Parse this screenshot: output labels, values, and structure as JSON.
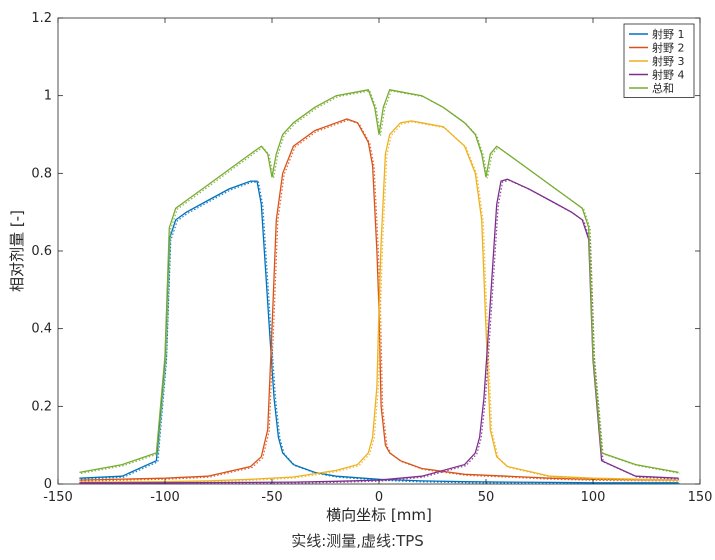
{
  "chart_data": {
    "type": "line",
    "xlabel": "横向坐标 [mm]",
    "ylabel": "相对剂量 [-]",
    "caption": "实线:测量,虚线:TPS",
    "xlim": [
      -150,
      150
    ],
    "ylim": [
      0,
      1.2
    ],
    "xticks": [
      -150,
      -100,
      -50,
      0,
      50,
      100,
      150
    ],
    "yticks": [
      0,
      0.2,
      0.4,
      0.6,
      0.8,
      1,
      1.2
    ],
    "xtick_labels": [
      "-150",
      "-100",
      "-50",
      "0",
      "50",
      "100",
      "150"
    ],
    "ytick_labels": [
      "0",
      "0.2",
      "0.4",
      "0.6",
      "0.8",
      "1",
      "1.2"
    ],
    "grid": false,
    "legend_position": "top-right",
    "line_styles": {
      "measured": "solid",
      "tps": "dotted"
    },
    "series": [
      {
        "name": "射野 1",
        "color": "#0072BD",
        "x": [
          -140,
          -120,
          -104,
          -100,
          -98,
          -95,
          -90,
          -80,
          -70,
          -60,
          -57,
          -55,
          -53,
          -51,
          -49,
          -47,
          -45,
          -40,
          -30,
          -20,
          0,
          20,
          40,
          60,
          80,
          100,
          120,
          140
        ],
        "y": [
          0.015,
          0.02,
          0.06,
          0.32,
          0.63,
          0.68,
          0.7,
          0.73,
          0.76,
          0.78,
          0.78,
          0.72,
          0.55,
          0.38,
          0.22,
          0.12,
          0.08,
          0.05,
          0.03,
          0.02,
          0.012,
          0.008,
          0.006,
          0.005,
          0.004,
          0.003,
          0.003,
          0.003
        ]
      },
      {
        "name": "射野 2",
        "color": "#D95319",
        "x": [
          -140,
          -100,
          -80,
          -60,
          -55,
          -52,
          -50,
          -48,
          -45,
          -40,
          -30,
          -20,
          -15,
          -10,
          -5,
          -3,
          -1,
          0,
          1,
          3,
          5,
          10,
          20,
          40,
          60,
          80,
          100,
          140
        ],
        "y": [
          0.01,
          0.015,
          0.02,
          0.045,
          0.07,
          0.14,
          0.4,
          0.68,
          0.8,
          0.87,
          0.91,
          0.93,
          0.94,
          0.93,
          0.88,
          0.82,
          0.6,
          0.45,
          0.2,
          0.1,
          0.08,
          0.06,
          0.04,
          0.025,
          0.02,
          0.015,
          0.012,
          0.01
        ]
      },
      {
        "name": "射野 3",
        "color": "#EDB120",
        "x": [
          -140,
          -100,
          -80,
          -60,
          -40,
          -20,
          -10,
          -5,
          -3,
          -1,
          0,
          1,
          3,
          5,
          10,
          15,
          20,
          30,
          40,
          45,
          48,
          50,
          52,
          55,
          60,
          80,
          100,
          140
        ],
        "y": [
          0.005,
          0.006,
          0.008,
          0.012,
          0.018,
          0.035,
          0.05,
          0.08,
          0.12,
          0.25,
          0.45,
          0.62,
          0.85,
          0.9,
          0.93,
          0.935,
          0.93,
          0.92,
          0.87,
          0.8,
          0.68,
          0.4,
          0.14,
          0.07,
          0.045,
          0.02,
          0.015,
          0.01
        ]
      },
      {
        "name": "射野 4",
        "color": "#7E2F8E",
        "x": [
          -140,
          -100,
          -60,
          -40,
          -20,
          0,
          20,
          40,
          45,
          47,
          49,
          51,
          53,
          55,
          57,
          60,
          70,
          80,
          90,
          95,
          98,
          100,
          104,
          120,
          140
        ],
        "y": [
          0.003,
          0.003,
          0.004,
          0.005,
          0.007,
          0.01,
          0.02,
          0.05,
          0.08,
          0.12,
          0.22,
          0.38,
          0.55,
          0.72,
          0.78,
          0.785,
          0.76,
          0.73,
          0.7,
          0.68,
          0.63,
          0.32,
          0.06,
          0.02,
          0.015
        ]
      },
      {
        "name": "总和",
        "color": "#77AC30",
        "x": [
          -140,
          -120,
          -104,
          -100,
          -98,
          -95,
          -90,
          -80,
          -70,
          -60,
          -55,
          -52,
          -50,
          -48,
          -45,
          -40,
          -30,
          -20,
          -10,
          -5,
          -2,
          0,
          2,
          5,
          10,
          20,
          30,
          40,
          45,
          48,
          50,
          52,
          55,
          60,
          70,
          80,
          90,
          95,
          98,
          100,
          104,
          120,
          140
        ],
        "y": [
          0.03,
          0.05,
          0.08,
          0.33,
          0.66,
          0.71,
          0.73,
          0.77,
          0.81,
          0.85,
          0.87,
          0.85,
          0.79,
          0.85,
          0.9,
          0.93,
          0.97,
          1.0,
          1.01,
          1.015,
          0.97,
          0.9,
          0.97,
          1.015,
          1.01,
          1.0,
          0.97,
          0.93,
          0.9,
          0.85,
          0.79,
          0.85,
          0.87,
          0.85,
          0.81,
          0.77,
          0.73,
          0.71,
          0.66,
          0.33,
          0.08,
          0.05,
          0.03
        ]
      }
    ]
  }
}
